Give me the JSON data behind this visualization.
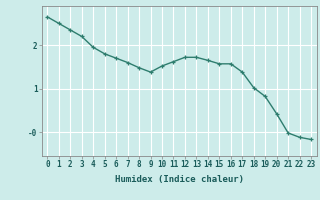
{
  "x": [
    0,
    1,
    2,
    3,
    4,
    5,
    6,
    7,
    8,
    9,
    10,
    11,
    12,
    13,
    14,
    15,
    16,
    17,
    18,
    19,
    20,
    21,
    22,
    23
  ],
  "y": [
    2.65,
    2.5,
    2.35,
    2.2,
    1.95,
    1.8,
    1.7,
    1.6,
    1.48,
    1.38,
    1.52,
    1.62,
    1.72,
    1.72,
    1.65,
    1.57,
    1.57,
    1.38,
    1.02,
    0.82,
    0.42,
    -0.02,
    -0.12,
    -0.17
  ],
  "line_color": "#2e7d6e",
  "marker": "+",
  "marker_size": 3.5,
  "linewidth": 1.0,
  "bg_color": "#cdecea",
  "grid_color": "#ffffff",
  "xlabel": "Humidex (Indice chaleur)",
  "xlim": [
    -0.5,
    23.5
  ],
  "ylim": [
    -0.55,
    2.9
  ],
  "xlabel_fontsize": 6.5,
  "tick_fontsize": 5.5
}
